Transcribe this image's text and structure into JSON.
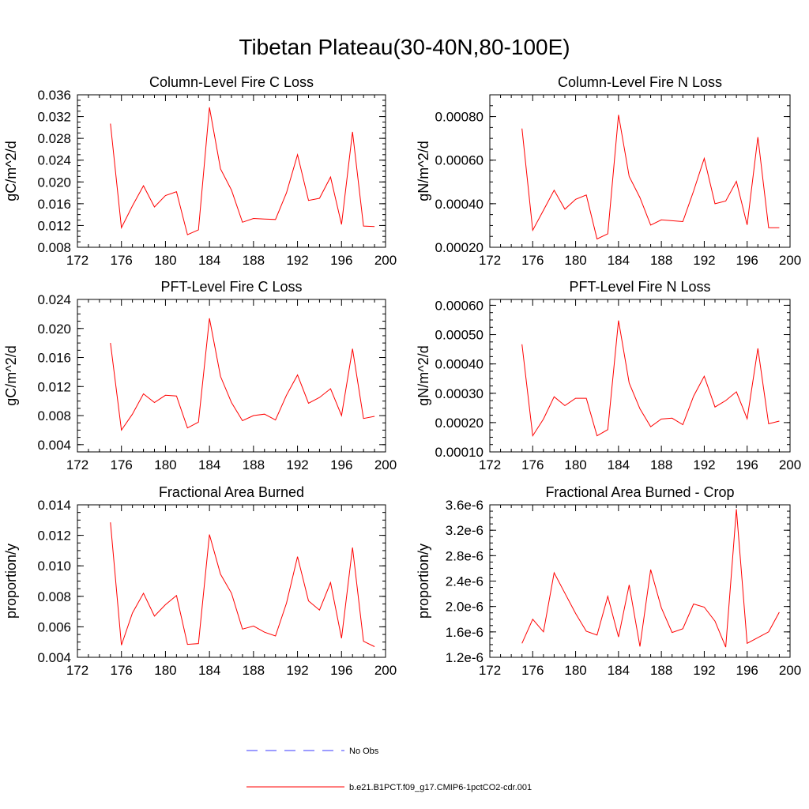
{
  "title": "Tibetan Plateau(30-40N,80-100E)",
  "colors": {
    "model_line": "#ff0000",
    "obs_line": "#3a3aff",
    "axis": "#000000"
  },
  "legend": [
    {
      "label": "No Obs",
      "style": "dashed",
      "color": "#3a3aff"
    },
    {
      "label": "b.e21.B1PCT.f09_g17.CMIP6-1pctCO2-cdr.001",
      "style": "solid",
      "color": "#ff0000"
    }
  ],
  "chart_data": [
    {
      "type": "line",
      "title": "Column-Level Fire C Loss",
      "ylabel": "gC/m^2/d",
      "xlabel": "",
      "xlim": [
        172,
        200
      ],
      "ylim": [
        0.008,
        0.036
      ],
      "xticks": [
        "172",
        "176",
        "180",
        "184",
        "188",
        "192",
        "196",
        "200"
      ],
      "yticks": [
        "0.008",
        "0.012",
        "0.016",
        "0.020",
        "0.024",
        "0.028",
        "0.032",
        "0.036"
      ],
      "x": [
        175,
        176,
        177,
        178,
        179,
        180,
        181,
        182,
        183,
        184,
        185,
        186,
        187,
        188,
        189,
        190,
        191,
        192,
        193,
        194,
        195,
        196,
        197,
        198,
        199
      ],
      "series": [
        {
          "name": "b.e21.B1PCT.f09_g17.CMIP6-1pctCO2-cdr.001",
          "values": [
            0.0307,
            0.0116,
            0.0156,
            0.0193,
            0.0154,
            0.0175,
            0.0182,
            0.0103,
            0.0112,
            0.0337,
            0.0224,
            0.0185,
            0.0126,
            0.0133,
            0.0132,
            0.0131,
            0.018,
            0.025,
            0.0166,
            0.017,
            0.0209,
            0.0122,
            0.0292,
            0.0119,
            0.0118
          ]
        }
      ]
    },
    {
      "type": "line",
      "title": "Column-Level Fire N Loss",
      "ylabel": "gN/m^2/d",
      "xlabel": "",
      "xlim": [
        172,
        200
      ],
      "ylim": [
        0.0002,
        0.0009
      ],
      "xticks": [
        "172",
        "176",
        "180",
        "184",
        "188",
        "192",
        "196",
        "200"
      ],
      "yticks": [
        "0.00020",
        "0.00040",
        "0.00060",
        "0.00080"
      ],
      "ytick_values": [
        0.0002,
        0.0004,
        0.0006,
        0.0008
      ],
      "x": [
        175,
        176,
        177,
        178,
        179,
        180,
        181,
        182,
        183,
        184,
        185,
        186,
        187,
        188,
        189,
        190,
        191,
        192,
        193,
        194,
        195,
        196,
        197,
        198,
        199
      ],
      "series": [
        {
          "name": "b.e21.B1PCT.f09_g17.CMIP6-1pctCO2-cdr.001",
          "values": [
            0.000745,
            0.000278,
            0.00037,
            0.000462,
            0.000375,
            0.00042,
            0.00044,
            0.000238,
            0.000262,
            0.000808,
            0.000525,
            0.000428,
            0.000302,
            0.000326,
            0.000322,
            0.000318,
            0.000458,
            0.000608,
            0.0004,
            0.000412,
            0.000503,
            0.000303,
            0.000706,
            0.00029,
            0.00029
          ]
        }
      ]
    },
    {
      "type": "line",
      "title": "PFT-Level Fire C Loss",
      "ylabel": "gC/m^2/d",
      "xlabel": "",
      "xlim": [
        172,
        200
      ],
      "ylim": [
        0.003,
        0.024
      ],
      "xticks": [
        "172",
        "176",
        "180",
        "184",
        "188",
        "192",
        "196",
        "200"
      ],
      "yticks": [
        "0.004",
        "0.008",
        "0.012",
        "0.016",
        "0.020",
        "0.024"
      ],
      "ytick_values": [
        0.004,
        0.008,
        0.012,
        0.016,
        0.02,
        0.024
      ],
      "x": [
        175,
        176,
        177,
        178,
        179,
        180,
        181,
        182,
        183,
        184,
        185,
        186,
        187,
        188,
        189,
        190,
        191,
        192,
        193,
        194,
        195,
        196,
        197,
        198,
        199
      ],
      "series": [
        {
          "name": "b.e21.B1PCT.f09_g17.CMIP6-1pctCO2-cdr.001",
          "values": [
            0.018,
            0.006,
            0.0082,
            0.011,
            0.0098,
            0.0108,
            0.0107,
            0.0063,
            0.0071,
            0.0214,
            0.0134,
            0.0098,
            0.0073,
            0.008,
            0.0082,
            0.0074,
            0.0108,
            0.0136,
            0.0097,
            0.0105,
            0.0117,
            0.008,
            0.0172,
            0.0076,
            0.0079
          ]
        }
      ]
    },
    {
      "type": "line",
      "title": "PFT-Level Fire N Loss",
      "ylabel": "gN/m^2/d",
      "xlabel": "",
      "xlim": [
        172,
        200
      ],
      "ylim": [
        0.0001,
        0.00062
      ],
      "xticks": [
        "172",
        "176",
        "180",
        "184",
        "188",
        "192",
        "196",
        "200"
      ],
      "yticks": [
        "0.00010",
        "0.00020",
        "0.00030",
        "0.00040",
        "0.00050",
        "0.00060"
      ],
      "ytick_values": [
        0.0001,
        0.0002,
        0.0003,
        0.0004,
        0.0005,
        0.0006
      ],
      "x": [
        175,
        176,
        177,
        178,
        179,
        180,
        181,
        182,
        183,
        184,
        185,
        186,
        187,
        188,
        189,
        190,
        191,
        192,
        193,
        194,
        195,
        196,
        197,
        198,
        199
      ],
      "series": [
        {
          "name": "b.e21.B1PCT.f09_g17.CMIP6-1pctCO2-cdr.001",
          "values": [
            0.000467,
            0.000155,
            0.000212,
            0.000288,
            0.000258,
            0.000283,
            0.000283,
            0.000155,
            0.000176,
            0.000548,
            0.000335,
            0.000247,
            0.000186,
            0.000212,
            0.000215,
            0.000193,
            0.00029,
            0.000358,
            0.000253,
            0.000275,
            0.000305,
            0.000213,
            0.000453,
            0.000196,
            0.000205
          ]
        }
      ]
    },
    {
      "type": "line",
      "title": "Fractional Area Burned",
      "ylabel": "proportion/y",
      "xlabel": "",
      "xlim": [
        172,
        200
      ],
      "ylim": [
        0.004,
        0.014
      ],
      "xticks": [
        "172",
        "176",
        "180",
        "184",
        "188",
        "192",
        "196",
        "200"
      ],
      "yticks": [
        "0.004",
        "0.006",
        "0.008",
        "0.010",
        "0.012",
        "0.014"
      ],
      "ytick_values": [
        0.004,
        0.006,
        0.008,
        0.01,
        0.012,
        0.014
      ],
      "x": [
        175,
        176,
        177,
        178,
        179,
        180,
        181,
        182,
        183,
        184,
        185,
        186,
        187,
        188,
        189,
        190,
        191,
        192,
        193,
        194,
        195,
        196,
        197,
        198,
        199
      ],
      "series": [
        {
          "name": "b.e21.B1PCT.f09_g17.CMIP6-1pctCO2-cdr.001",
          "values": [
            0.01285,
            0.0048,
            0.0069,
            0.0082,
            0.0067,
            0.00745,
            0.00805,
            0.00485,
            0.0049,
            0.01205,
            0.00945,
            0.0082,
            0.00585,
            0.00605,
            0.00565,
            0.0054,
            0.00755,
            0.0106,
            0.0077,
            0.0071,
            0.0089,
            0.00525,
            0.0112,
            0.00505,
            0.0047
          ]
        }
      ]
    },
    {
      "type": "line",
      "title": "Fractional Area Burned - Crop",
      "ylabel": "proportion/y",
      "xlabel": "",
      "xlim": [
        172,
        200
      ],
      "ylim": [
        1.2e-06,
        3.6e-06
      ],
      "xticks": [
        "172",
        "176",
        "180",
        "184",
        "188",
        "192",
        "196",
        "200"
      ],
      "yticks": [
        "1.2e-6",
        "1.6e-6",
        "2.0e-6",
        "2.4e-6",
        "2.8e-6",
        "3.2e-6",
        "3.6e-6"
      ],
      "ytick_values": [
        1.2e-06,
        1.6e-06,
        2e-06,
        2.4e-06,
        2.8e-06,
        3.2e-06,
        3.6e-06
      ],
      "x": [
        175,
        176,
        177,
        178,
        179,
        180,
        181,
        182,
        183,
        184,
        185,
        186,
        187,
        188,
        189,
        190,
        191,
        192,
        193,
        194,
        195,
        196,
        197,
        198,
        199
      ],
      "series": [
        {
          "name": "b.e21.B1PCT.f09_g17.CMIP6-1pctCO2-cdr.001",
          "values": [
            1.42e-06,
            1.8e-06,
            1.6e-06,
            2.53e-06,
            2.21e-06,
            1.89e-06,
            1.61e-06,
            1.55e-06,
            2.16e-06,
            1.52e-06,
            2.34e-06,
            1.37e-06,
            2.58e-06,
            1.98e-06,
            1.59e-06,
            1.65e-06,
            2.04e-06,
            1.99e-06,
            1.77e-06,
            1.36e-06,
            3.53e-06,
            1.42e-06,
            1.51e-06,
            1.6e-06,
            1.91e-06
          ]
        }
      ]
    }
  ]
}
